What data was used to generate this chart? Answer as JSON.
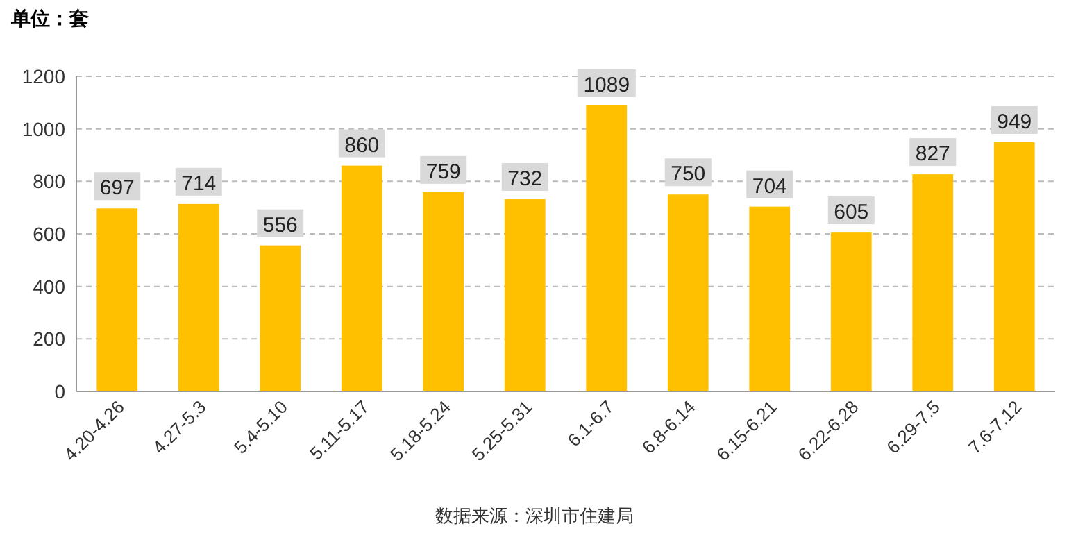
{
  "chart_data": {
    "type": "bar",
    "title": "单位：套",
    "categories": [
      "4.20-4.26",
      "4.27-5.3",
      "5.4-5.10",
      "5.11-5.17",
      "5.18-5.24",
      "5.25-5.31",
      "6.1-6.7",
      "6.8-6.14",
      "6.15-6.21",
      "6.22-6.28",
      "6.29-7.5",
      "7.6-7.12"
    ],
    "values": [
      697,
      714,
      556,
      860,
      759,
      732,
      1089,
      750,
      704,
      605,
      827,
      949
    ],
    "color": "#ffc000",
    "ylim": [
      0,
      1200
    ],
    "yticks": [
      0,
      200,
      400,
      600,
      800,
      1000,
      1200
    ],
    "grid": "y",
    "data_labels": true,
    "annotations": [
      "数据来源：深圳市住建局"
    ]
  }
}
